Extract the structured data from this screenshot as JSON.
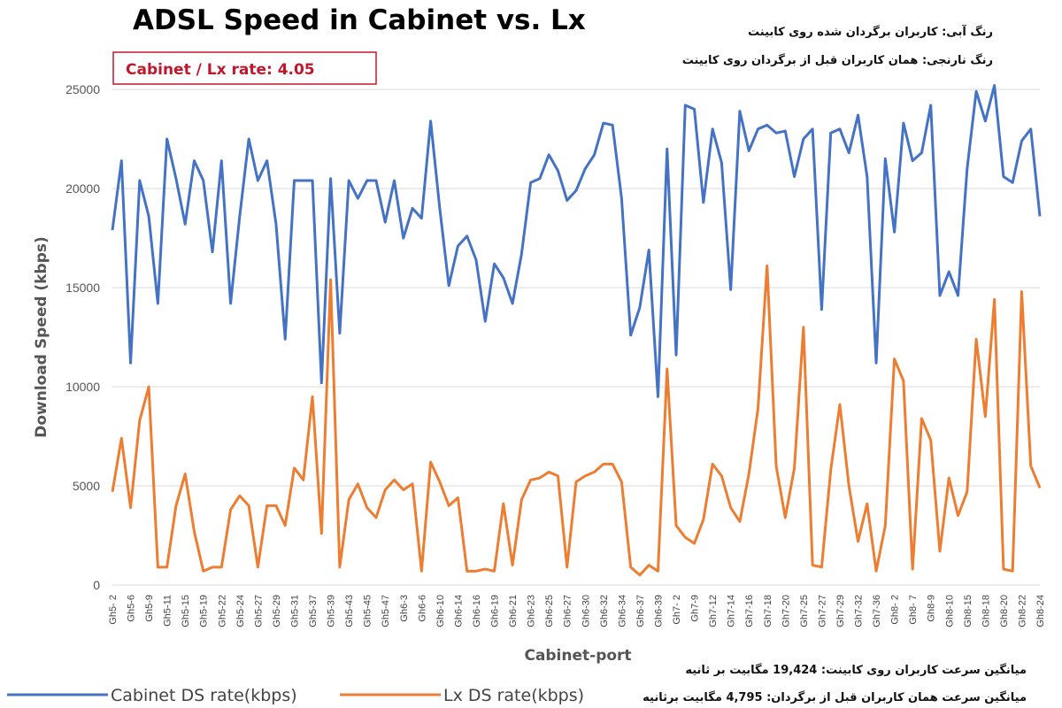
{
  "header": {
    "title": "ADSL Speed in Cabinet vs. Lx",
    "rate_label": "Cabinet / Lx rate: 4.05",
    "note_blue": "رنگ آبی: کاربران برگردان شده روی کابینت",
    "note_orange": "رنگ نارنجی: همان کاربران قبل از برگردان روی کابینت"
  },
  "footer_notes": {
    "avg_cabinet": "میانگین سرعت کاربران روی کابینت: 19,424 مگابیت بر ثانیه",
    "avg_lx": "میانگین سرعت همان کاربران قبل از برگردان: 4,795 مگابیت برثانیه"
  },
  "colors": {
    "cabinet": "#4472c4",
    "lx": "#ed7d31",
    "grid": "#d9d9d9",
    "rate_box": "#c0182b"
  },
  "chart_data": {
    "type": "line",
    "title": "ADSL Speed in Cabinet vs. Lx",
    "xlabel": "Cabinet-port",
    "ylabel": "Download Speed (kbps)",
    "ylim": [
      0,
      25000
    ],
    "yticks": [
      0,
      5000,
      10000,
      15000,
      20000,
      25000
    ],
    "grid": true,
    "legend_position": "bottom-left",
    "tick_labels": [
      "Gh5- 2",
      "Gh5-6",
      "Gh5-9",
      "Gh5-11",
      "Gh5-15",
      "Gh5-19",
      "Gh5-22",
      "Gh5-24",
      "Gh5-27",
      "Gh5-29",
      "Gh5-31",
      "Gh5-37",
      "Gh5-39",
      "Gh5-43",
      "Gh5-45",
      "Gh5-47",
      "Gh6-3",
      "Gh6-6",
      "Gh6-10",
      "Gh6-14",
      "Gh6-16",
      "Gh6-19",
      "Gh6-21",
      "Gh6-23",
      "Gh6-25",
      "Gh6-27",
      "Gh6-30",
      "Gh6-32",
      "Gh6-34",
      "Gh6-37",
      "Gh6-39",
      "Gh7- 2",
      "Gh7-9",
      "Gh7-12",
      "Gh7-14",
      "Gh7-16",
      "Gh7-18",
      "Gh7-20",
      "Gh7-25",
      "Gh7-27",
      "Gh7-29",
      "Gh7-32",
      "Gh7-36",
      "Gh8- 2",
      "Gh8- 7",
      "Gh8-9",
      "Gh8-10",
      "Gh8-15",
      "Gh8-18",
      "Gh8-20",
      "Gh8-22",
      "Gh8-24"
    ],
    "series": [
      {
        "name": "Cabinet DS rate(kbps)",
        "values": [
          17900,
          21400,
          11200,
          20400,
          18600,
          14200,
          22500,
          20500,
          18200,
          21400,
          20400,
          16800,
          21400,
          14200,
          18600,
          22500,
          20400,
          21400,
          18200,
          12400,
          20400,
          20400,
          20400,
          10200,
          20500,
          12700,
          20400,
          19500,
          20400,
          20400,
          18300,
          20400,
          17500,
          19000,
          18500,
          23400,
          19000,
          15100,
          17100,
          17600,
          16400,
          13300,
          16200,
          15500,
          14200,
          16700,
          20300,
          20500,
          21700,
          20900,
          19400,
          19900,
          21000,
          21700,
          23300,
          23200,
          19500,
          12600,
          14000,
          16900,
          9500,
          22000,
          11600,
          24200,
          24000,
          19300,
          23000,
          21300,
          14900,
          23900,
          21900,
          23000,
          23200,
          22800,
          22900,
          20600,
          22500,
          23000,
          13900,
          22800,
          23000,
          21800,
          23700,
          20600,
          11200,
          21500,
          17800,
          23300,
          21400,
          21800,
          24200,
          14600,
          15800,
          14600,
          21000,
          24900,
          23400,
          25200,
          20600,
          20300,
          22400,
          23000,
          18600
        ]
      },
      {
        "name": "Lx DS rate(kbps)",
        "values": [
          4700,
          7400,
          3900,
          8300,
          10000,
          900,
          900,
          4000,
          5600,
          2700,
          700,
          900,
          900,
          3800,
          4500,
          4000,
          900,
          4000,
          4000,
          3000,
          5900,
          5300,
          9500,
          2600,
          15400,
          900,
          4300,
          5100,
          3900,
          3400,
          4800,
          5300,
          4800,
          5100,
          700,
          6200,
          5200,
          4000,
          4400,
          700,
          700,
          800,
          700,
          4100,
          1000,
          4300,
          5300,
          5400,
          5700,
          5500,
          900,
          5200,
          5500,
          5700,
          6100,
          6100,
          5200,
          900,
          500,
          1000,
          700,
          10900,
          3000,
          2400,
          2100,
          3300,
          6100,
          5500,
          3900,
          3200,
          5600,
          8900,
          16100,
          6000,
          3400,
          5900,
          13000,
          1000,
          900,
          5800,
          9100,
          5000,
          2200,
          4100,
          700,
          3000,
          11400,
          10300,
          800,
          8400,
          7300,
          1700,
          5400,
          3500,
          4700,
          12400,
          8500,
          14400,
          800,
          700,
          14800,
          6000,
          4900
        ]
      }
    ]
  }
}
